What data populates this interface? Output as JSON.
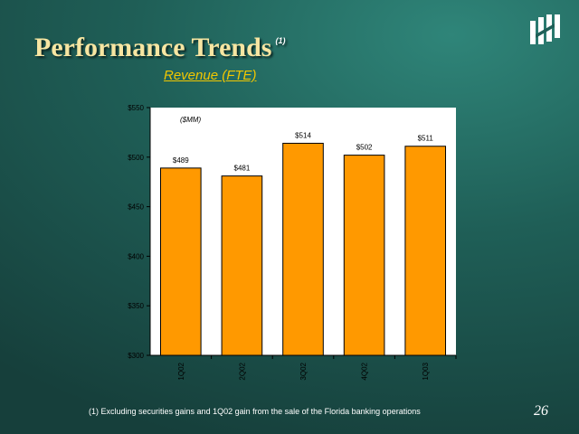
{
  "slide": {
    "title": "Performance Trends",
    "title_note": "(1)",
    "footnote": "(1) Excluding securities gains and 1Q02 gain from the sale of the Florida banking operations",
    "page_number": "26",
    "logo_icon": "huntington-logo-icon",
    "colors": {
      "bar": "#ff9900",
      "title": "#f7e6a2",
      "subtitle": "#f2c700",
      "plot_bg": "#ffffff"
    }
  },
  "chart_data": {
    "type": "bar",
    "title": "Revenue (FTE)",
    "unit_label": "($MM)",
    "categories": [
      "1Q02",
      "2Q02",
      "3Q02",
      "4Q02",
      "1Q03"
    ],
    "values": [
      489,
      481,
      514,
      502,
      511
    ],
    "value_labels": [
      "$489",
      "$481",
      "$514",
      "$502",
      "$511"
    ],
    "ylim": [
      300,
      550
    ],
    "yticks": [
      300,
      350,
      400,
      450,
      500,
      550
    ],
    "ytick_labels": [
      "$300",
      "$350",
      "$400",
      "$450",
      "$500",
      "$550"
    ],
    "grid": false,
    "legend": "none"
  }
}
